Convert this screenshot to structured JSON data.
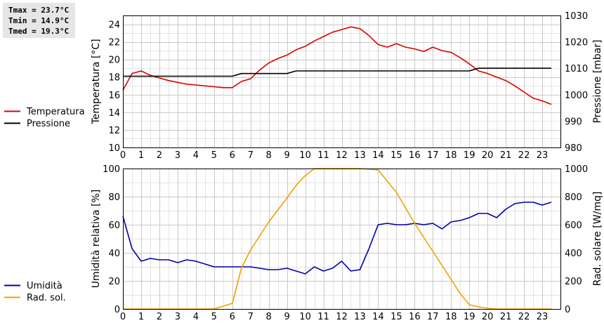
{
  "stats": [
    "Tmax = 23.7°C",
    "Tmin = 14.9°C",
    "Tmed = 19.3°C"
  ],
  "chart_data": [
    {
      "type": "line",
      "xlim": [
        0,
        24
      ],
      "x_ticks": [
        0,
        1,
        2,
        3,
        4,
        5,
        6,
        7,
        8,
        9,
        10,
        11,
        12,
        13,
        14,
        15,
        16,
        17,
        18,
        19,
        20,
        21,
        22,
        23
      ],
      "left_axis": {
        "label": "Temperatura [°C]",
        "ylim": [
          10,
          25
        ],
        "ticks": [
          10,
          12,
          14,
          16,
          18,
          20,
          22,
          24
        ]
      },
      "right_axis": {
        "label": "Pressione [mbar]",
        "ylim": [
          980,
          1030
        ],
        "ticks": [
          980,
          990,
          1000,
          1010,
          1020,
          1030
        ]
      },
      "grid": true,
      "legend": "left",
      "series": [
        {
          "name": "Temperatura",
          "axis": "left",
          "color": "#dd0000",
          "x": [
            0,
            0.5,
            1,
            1.5,
            2,
            2.5,
            3,
            3.5,
            4,
            4.5,
            5,
            5.5,
            6,
            6.5,
            7,
            7.5,
            8,
            8.5,
            9,
            9.5,
            10,
            10.5,
            11,
            11.5,
            12,
            12.5,
            13,
            13.5,
            14,
            14.5,
            15,
            15.5,
            16,
            16.5,
            17,
            17.5,
            18,
            18.5,
            19,
            19.5,
            20,
            20.5,
            21,
            21.5,
            22,
            22.5,
            23,
            23.5
          ],
          "y": [
            16.5,
            18.4,
            18.7,
            18.2,
            17.9,
            17.6,
            17.4,
            17.2,
            17.1,
            17.0,
            16.9,
            16.8,
            16.8,
            17.5,
            17.8,
            18.8,
            19.6,
            20.1,
            20.5,
            21.1,
            21.5,
            22.1,
            22.6,
            23.1,
            23.4,
            23.7,
            23.5,
            22.7,
            21.7,
            21.4,
            21.8,
            21.4,
            21.2,
            20.9,
            21.4,
            21.0,
            20.8,
            20.2,
            19.5,
            18.7,
            18.4,
            18.0,
            17.6,
            17.0,
            16.3,
            15.6,
            15.3,
            14.9
          ]
        },
        {
          "name": "Pressione",
          "axis": "right",
          "color": "#000000",
          "x": [
            0,
            6,
            6.5,
            9,
            9.5,
            19,
            19.5,
            23.5
          ],
          "y": [
            1007,
            1007,
            1008,
            1008,
            1009,
            1009,
            1010,
            1010
          ]
        }
      ]
    },
    {
      "type": "line",
      "xlim": [
        0,
        24
      ],
      "x_ticks": [
        0,
        1,
        2,
        3,
        4,
        5,
        6,
        7,
        8,
        9,
        10,
        11,
        12,
        13,
        14,
        15,
        16,
        17,
        18,
        19,
        20,
        21,
        22,
        23
      ],
      "left_axis": {
        "label": "Umidità relativa [%]",
        "ylim": [
          0,
          100
        ],
        "ticks": [
          0,
          20,
          40,
          60,
          80,
          100
        ]
      },
      "right_axis": {
        "label": "Rad. solare [W/mq]",
        "ylim": [
          0,
          1000
        ],
        "ticks": [
          0,
          200,
          400,
          600,
          800,
          1000
        ]
      },
      "grid": true,
      "legend": "left",
      "series": [
        {
          "name": "Umidità",
          "axis": "left",
          "color": "#0000aa",
          "x": [
            0,
            0.5,
            1,
            1.5,
            2,
            2.5,
            3,
            3.5,
            4,
            4.5,
            5,
            5.5,
            6,
            6.5,
            7,
            7.5,
            8,
            8.5,
            9,
            9.5,
            10,
            10.5,
            11,
            11.5,
            12,
            12.5,
            13,
            13.5,
            14,
            14.5,
            15,
            15.5,
            16,
            16.5,
            17,
            17.5,
            18,
            18.5,
            19,
            19.5,
            20,
            20.5,
            21,
            21.5,
            22,
            22.5,
            23,
            23.5
          ],
          "y": [
            66,
            43,
            34,
            36,
            35,
            35,
            33,
            35,
            34,
            32,
            30,
            30,
            30,
            30,
            30,
            29,
            28,
            28,
            29,
            27,
            25,
            30,
            27,
            29,
            34,
            27,
            28,
            43,
            60,
            61,
            60,
            60,
            61,
            60,
            61,
            57,
            62,
            63,
            65,
            68,
            68,
            65,
            71,
            75,
            76,
            76,
            74,
            76
          ]
        },
        {
          "name": "Rad. sol.",
          "axis": "right",
          "color": "#f0a000",
          "x": [
            0,
            5,
            6,
            6.5,
            7,
            8,
            9,
            9.5,
            10,
            10.5,
            11,
            12,
            13,
            14,
            15,
            15.5,
            16,
            16.5,
            17,
            17.5,
            18,
            18.5,
            19,
            19.5,
            20,
            20.5,
            21,
            22,
            23,
            23.5
          ],
          "y": [
            0,
            0,
            40,
            290,
            420,
            620,
            790,
            880,
            950,
            1010,
            1060,
            1100,
            1070,
            990,
            830,
            720,
            610,
            510,
            410,
            310,
            210,
            110,
            30,
            15,
            5,
            0,
            0,
            0,
            0,
            0
          ]
        }
      ]
    }
  ]
}
